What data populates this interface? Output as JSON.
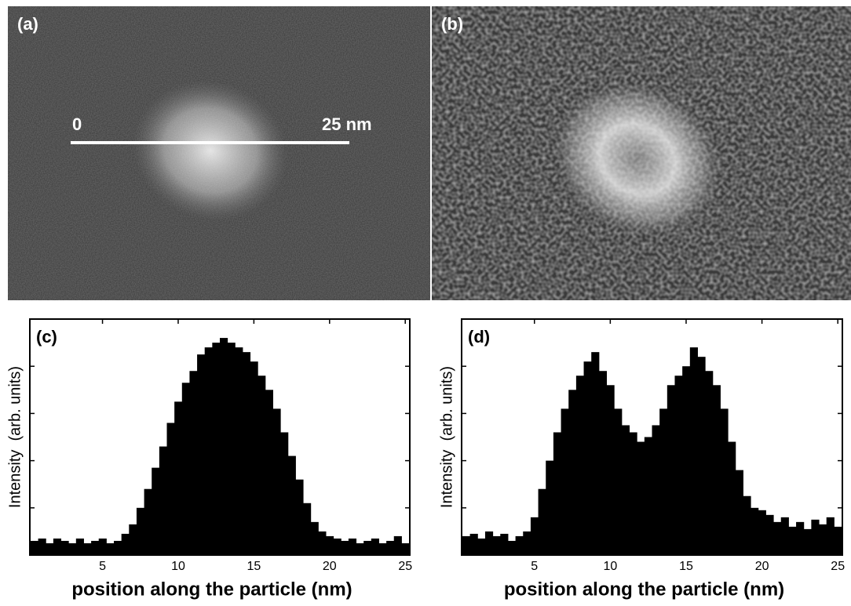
{
  "images": [
    {
      "label": "(a)",
      "scale_start": "0",
      "scale_end": "25 nm"
    },
    {
      "label": "(b)"
    }
  ],
  "chart_data": [
    {
      "type": "histogram",
      "title": "(c)",
      "xlabel": "position along the particle (nm)",
      "ylabel": "Intensity  (arb. units)",
      "color": "#000000",
      "bins": [
        0.25,
        0.75,
        1.25,
        1.75,
        2.25,
        2.75,
        3.25,
        3.75,
        4.25,
        4.75,
        5.25,
        5.75,
        6.25,
        6.75,
        7.25,
        7.75,
        8.25,
        8.75,
        9.25,
        9.75,
        10.25,
        10.75,
        11.25,
        11.75,
        12.25,
        12.75,
        13.25,
        13.75,
        14.25,
        14.75,
        15.25,
        15.75,
        16.25,
        16.75,
        17.25,
        17.75,
        18.25,
        18.75,
        19.25,
        19.75,
        20.25,
        20.75,
        21.25,
        21.75,
        22.25,
        22.75,
        23.25,
        23.75,
        24.25,
        24.75,
        25.25
      ],
      "values": [
        6,
        7,
        5,
        7,
        6,
        5,
        7,
        5,
        6,
        7,
        5,
        6,
        9,
        13,
        20,
        28,
        37,
        46,
        56,
        65,
        73,
        78,
        85,
        88,
        90,
        92,
        90,
        88,
        86,
        82,
        76,
        70,
        62,
        52,
        42,
        32,
        22,
        14,
        10,
        8,
        7,
        6,
        7,
        5,
        6,
        7,
        5,
        6,
        8,
        5
      ],
      "xlim": [
        0.2,
        25.3
      ],
      "xticks": [
        5,
        10,
        15,
        20,
        25
      ],
      "ylim": [
        0,
        100
      ],
      "yticks": [
        20,
        40,
        60,
        80
      ]
    },
    {
      "type": "histogram",
      "title": "(d)",
      "xlabel": "position along the particle (nm)",
      "ylabel": "Intensity  (arb. units)",
      "color": "#000000",
      "bins": [
        0.25,
        0.75,
        1.25,
        1.75,
        2.25,
        2.75,
        3.25,
        3.75,
        4.25,
        4.75,
        5.25,
        5.75,
        6.25,
        6.75,
        7.25,
        7.75,
        8.25,
        8.75,
        9.25,
        9.75,
        10.25,
        10.75,
        11.25,
        11.75,
        12.25,
        12.75,
        13.25,
        13.75,
        14.25,
        14.75,
        15.25,
        15.75,
        16.25,
        16.75,
        17.25,
        17.75,
        18.25,
        18.75,
        19.25,
        19.75,
        20.25,
        20.75,
        21.25,
        21.75,
        22.25,
        22.75,
        23.25,
        23.75,
        24.25,
        24.75,
        25.25
      ],
      "values": [
        8,
        9,
        7,
        10,
        8,
        9,
        6,
        8,
        10,
        16,
        28,
        40,
        52,
        62,
        70,
        76,
        82,
        86,
        78,
        72,
        62,
        55,
        52,
        48,
        50,
        55,
        62,
        72,
        76,
        80,
        88,
        84,
        78,
        72,
        62,
        48,
        36,
        25,
        20,
        19,
        17,
        14,
        16,
        12,
        14,
        11,
        15,
        13,
        16,
        12
      ],
      "xlim": [
        0.2,
        25.3
      ],
      "xticks": [
        5,
        10,
        15,
        20,
        25
      ],
      "ylim": [
        0,
        100
      ],
      "yticks": [
        20,
        40,
        60,
        80
      ]
    }
  ]
}
